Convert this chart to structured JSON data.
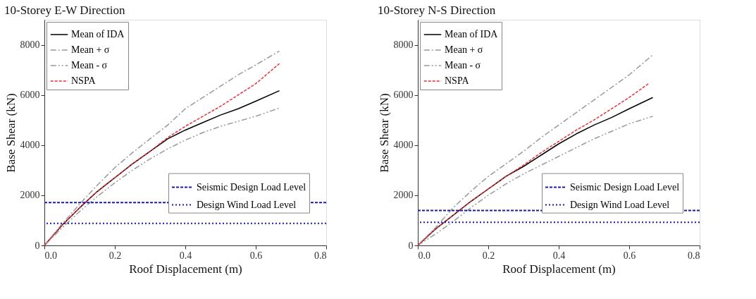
{
  "chart_data": [
    {
      "type": "line",
      "title": "10-Storey E-W Direction",
      "xlabel": "Roof Displacement (m)",
      "ylabel": "Base Shear (kN)",
      "xlim": [
        0,
        0.8
      ],
      "ylim": [
        0,
        9000
      ],
      "xticks": [
        {
          "value": 0,
          "label": "0.0"
        },
        {
          "value": 0.2,
          "label": "0.2"
        },
        {
          "value": 0.4,
          "label": "0.4"
        },
        {
          "value": 0.6,
          "label": "0.6"
        },
        {
          "value": 0.8,
          "label": "0.8"
        }
      ],
      "yticks": [
        0,
        2000,
        4000,
        6000,
        8000
      ],
      "grid": false,
      "legend": "top left",
      "x": [
        0,
        0.05,
        0.1,
        0.15,
        0.2,
        0.25,
        0.3,
        0.35,
        0.4,
        0.45,
        0.5,
        0.55,
        0.6,
        0.667
      ],
      "series": [
        {
          "name": "Mean of IDA",
          "color": "#000000",
          "line_style": "solid",
          "values": [
            0,
            800,
            1500,
            2150,
            2700,
            3250,
            3750,
            4250,
            4600,
            4900,
            5200,
            5450,
            5750,
            6170
          ]
        },
        {
          "name": "Mean + σ",
          "color": "#999999",
          "line_style": "dashdot",
          "values": [
            0,
            850,
            1650,
            2400,
            3100,
            3700,
            4250,
            4800,
            5450,
            5900,
            6350,
            6800,
            7200,
            7750
          ]
        },
        {
          "name": "Mean - σ",
          "color": "#999999",
          "line_style": "dashdotdot",
          "values": [
            0,
            700,
            1350,
            1950,
            2500,
            3000,
            3450,
            3850,
            4200,
            4500,
            4750,
            4950,
            5150,
            5480
          ]
        },
        {
          "name": "NSPA",
          "color": "#e8303a",
          "line_style": "dashed",
          "values": [
            0,
            800,
            1500,
            2150,
            2700,
            3250,
            3750,
            4300,
            4750,
            5150,
            5550,
            6000,
            6450,
            7250
          ]
        }
      ],
      "ref_lines": [
        {
          "axis": "y",
          "value": 1710,
          "label": "Seismic Design Load Level",
          "color": "#1c1ca8",
          "line_style": "dashed"
        },
        {
          "axis": "y",
          "value": 880,
          "label": "Design Wind Load Level",
          "color": "#1c1ca8",
          "line_style": "dotted"
        }
      ]
    },
    {
      "type": "line",
      "title": "10-Storey N-S Direction",
      "xlabel": "Roof Displacement (m)",
      "ylabel": "Base Shear (kN)",
      "xlim": [
        0,
        0.8
      ],
      "ylim": [
        0,
        9000
      ],
      "xticks": [
        {
          "value": 0,
          "label": "0.0"
        },
        {
          "value": 0.2,
          "label": "0.2"
        },
        {
          "value": 0.4,
          "label": "0.4"
        },
        {
          "value": 0.6,
          "label": "0.6"
        },
        {
          "value": 0.8,
          "label": "0.8"
        }
      ],
      "yticks": [
        0,
        2000,
        4000,
        6000,
        8000
      ],
      "grid": false,
      "legend": "top left",
      "x": [
        0,
        0.05,
        0.1,
        0.15,
        0.2,
        0.25,
        0.3,
        0.35,
        0.4,
        0.45,
        0.5,
        0.55,
        0.6,
        0.667
      ],
      "series": [
        {
          "name": "Mean of IDA",
          "color": "#000000",
          "line_style": "solid",
          "values": [
            0,
            650,
            1200,
            1750,
            2250,
            2750,
            3150,
            3600,
            4050,
            4450,
            4800,
            5100,
            5450,
            5900
          ]
        },
        {
          "name": "Mean + σ",
          "color": "#999999",
          "line_style": "dashdot",
          "values": [
            0,
            700,
            1500,
            2150,
            2750,
            3250,
            3750,
            4300,
            4800,
            5300,
            5800,
            6300,
            6800,
            7600
          ]
        },
        {
          "name": "Mean - σ",
          "color": "#999999",
          "line_style": "dashdotdot",
          "values": [
            0,
            450,
            950,
            1500,
            2000,
            2450,
            2850,
            3200,
            3550,
            3900,
            4250,
            4550,
            4850,
            5150
          ]
        },
        {
          "name": "NSPA",
          "color": "#e8303a",
          "line_style": "dashed",
          "x": [
            0,
            0.05,
            0.1,
            0.15,
            0.2,
            0.25,
            0.3,
            0.35,
            0.4,
            0.45,
            0.5,
            0.55,
            0.6,
            0.655
          ],
          "values": [
            0,
            650,
            1200,
            1750,
            2250,
            2750,
            3200,
            3700,
            4150,
            4600,
            5000,
            5450,
            5900,
            6450
          ]
        }
      ],
      "ref_lines": [
        {
          "axis": "y",
          "value": 1395,
          "label": "Seismic Design Load Level",
          "color": "#1c1ca8",
          "line_style": "dashed"
        },
        {
          "axis": "y",
          "value": 920,
          "label": "Design Wind Load Level",
          "color": "#1c1ca8",
          "line_style": "dotted"
        }
      ]
    }
  ]
}
